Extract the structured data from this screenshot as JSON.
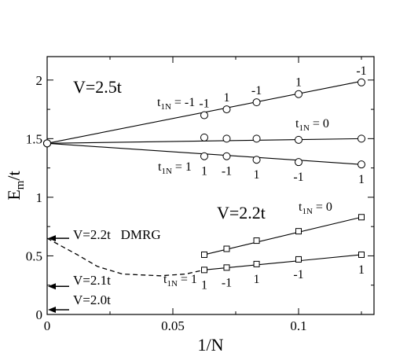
{
  "chart_data": {
    "type": "line",
    "xlabel": "1/N",
    "ylabel_main": "E",
    "ylabel_sub": "m",
    "ylabel_tail": "/t",
    "xlim": [
      0,
      0.13
    ],
    "ylim": [
      0,
      2.2
    ],
    "xticks": [
      0,
      0.05,
      0.1
    ],
    "xtick_labels": [
      "0",
      "0.05",
      "0.1"
    ],
    "yticks": [
      0,
      0.5,
      1,
      1.5,
      2
    ],
    "ytick_labels": [
      "0",
      "0.5",
      "1",
      "1.5",
      "2"
    ],
    "grid": false,
    "legend": "none",
    "series": [
      {
        "marker": "circle",
        "points": [
          [
            0,
            1.46
          ],
          [
            0.0625,
            1.7
          ],
          [
            0.0714,
            1.75
          ],
          [
            0.0833,
            1.81
          ],
          [
            0.1,
            1.88
          ],
          [
            0.125,
            1.98
          ]
        ],
        "fit": [
          [
            0,
            1.46
          ],
          [
            0.125,
            1.99
          ]
        ],
        "point_labels": [
          "-1",
          "1",
          "-1",
          "1",
          "-1"
        ]
      },
      {
        "marker": "circle",
        "points": [
          [
            0,
            1.46
          ],
          [
            0.0625,
            1.51
          ],
          [
            0.0714,
            1.5
          ],
          [
            0.0833,
            1.5
          ],
          [
            0.1,
            1.49
          ],
          [
            0.125,
            1.5
          ]
        ],
        "fit": [
          [
            0,
            1.46
          ],
          [
            0.125,
            1.5
          ]
        ],
        "point_labels": []
      },
      {
        "marker": "circle",
        "points": [
          [
            0,
            1.46
          ],
          [
            0.0625,
            1.35
          ],
          [
            0.0714,
            1.35
          ],
          [
            0.0833,
            1.32
          ],
          [
            0.1,
            1.3
          ],
          [
            0.125,
            1.28
          ]
        ],
        "fit": [
          [
            0,
            1.46
          ],
          [
            0.125,
            1.28
          ]
        ],
        "point_labels": [
          "1",
          "-1",
          "1",
          "-1",
          "1"
        ]
      },
      {
        "marker": "square",
        "points": [
          [
            0.0625,
            0.51
          ],
          [
            0.0714,
            0.56
          ],
          [
            0.0833,
            0.63
          ],
          [
            0.1,
            0.71
          ],
          [
            0.125,
            0.83
          ]
        ],
        "fit": [
          [
            0.0625,
            0.51
          ],
          [
            0.125,
            0.83
          ]
        ],
        "point_labels": []
      },
      {
        "marker": "square",
        "points": [
          [
            0.0625,
            0.38
          ],
          [
            0.0714,
            0.4
          ],
          [
            0.0833,
            0.43
          ],
          [
            0.1,
            0.47
          ],
          [
            0.125,
            0.51
          ]
        ],
        "fit": [
          [
            0.0625,
            0.38
          ],
          [
            0.125,
            0.51
          ]
        ],
        "point_labels": [
          "1",
          "-1",
          "1",
          "-1",
          "1"
        ]
      }
    ],
    "dmrg_curve": [
      [
        0,
        0.65
      ],
      [
        0.012,
        0.51
      ],
      [
        0.02,
        0.41
      ],
      [
        0.03,
        0.345
      ],
      [
        0.045,
        0.33
      ],
      [
        0.055,
        0.345
      ],
      [
        0.0625,
        0.38
      ]
    ],
    "t_labels": [
      {
        "base": "t",
        "sub": "1N",
        "value": " = -1"
      },
      {
        "base": "t",
        "sub": "1N",
        "value": " = 0"
      },
      {
        "base": "t",
        "sub": "1N",
        "value": " = 1"
      },
      {
        "base": "t",
        "sub": "1N",
        "value": " = 0"
      },
      {
        "base": "t",
        "sub": "1N",
        "value": " = 1"
      }
    ],
    "annotations": {
      "v25": "V=2.5t",
      "v22": "V=2.2t",
      "v22_dmrg": "V=2.2t   DMRG",
      "v21": "V=2.1t",
      "v20": "V=2.0t"
    },
    "arrow_levels": [
      0.65,
      0.24,
      0.04
    ]
  }
}
